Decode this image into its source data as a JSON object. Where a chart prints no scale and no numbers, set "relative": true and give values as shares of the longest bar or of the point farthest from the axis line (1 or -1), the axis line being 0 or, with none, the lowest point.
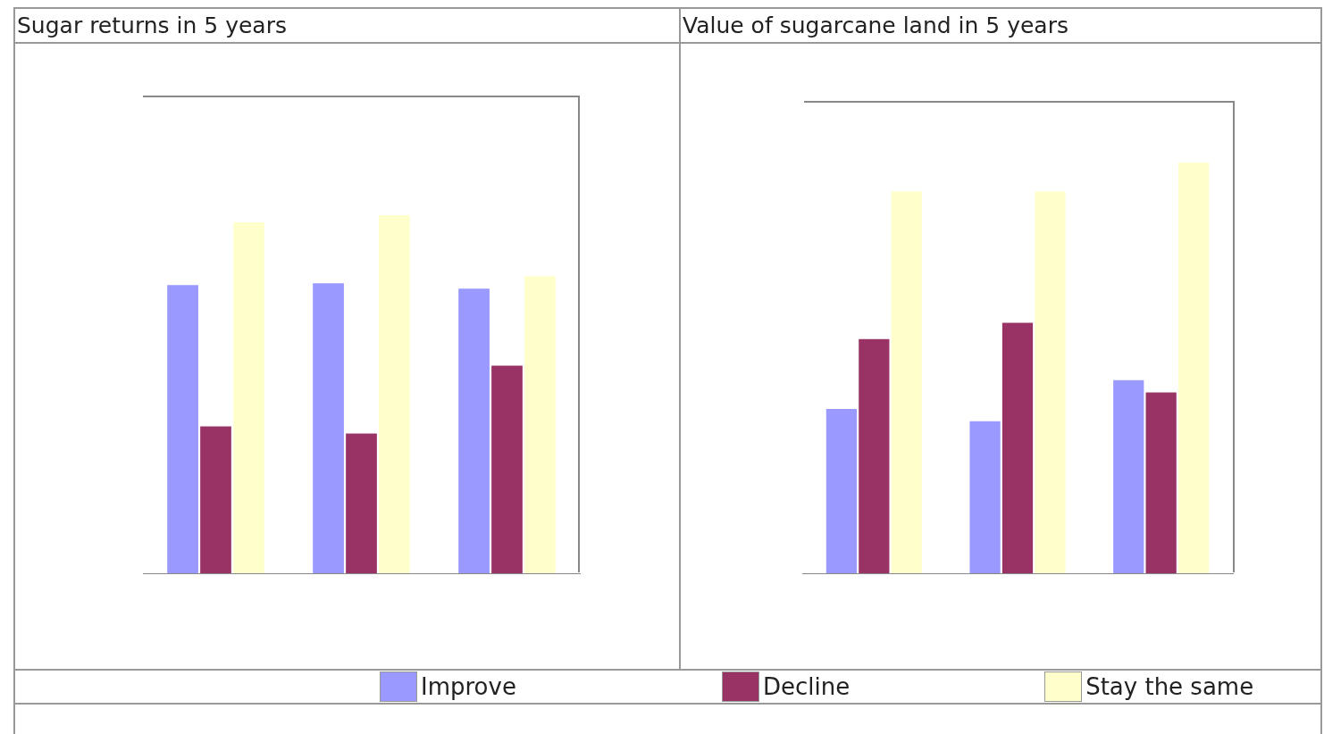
{
  "chart_data": [
    {
      "type": "bar",
      "title": "Sugar returns in 5 years",
      "categories": [
        null,
        null,
        null
      ],
      "relative": true,
      "legend": "bottom",
      "series": [
        {
          "name": "Improve",
          "color": "#9999ff",
          "values": [
            0.805,
            0.81,
            0.795
          ]
        },
        {
          "name": "Decline",
          "color": "#993366",
          "values": [
            0.41,
            0.39,
            0.58
          ]
        },
        {
          "name": "Stay the same",
          "color": "#ffffcc",
          "values": [
            0.98,
            1,
            0.83
          ]
        }
      ]
    },
    {
      "type": "bar",
      "title": "Value of sugarcane land in 5 years",
      "categories": [
        null,
        null,
        null
      ],
      "relative": true,
      "legend": "bottom",
      "series": [
        {
          "name": "Improve",
          "color": "#9999ff",
          "values": [
            0.4,
            0.37,
            0.47
          ]
        },
        {
          "name": "Decline",
          "color": "#993366",
          "values": [
            0.57,
            0.61,
            0.44
          ]
        },
        {
          "name": "Stay the same",
          "color": "#ffffcc",
          "values": [
            0.93,
            0.93,
            1
          ]
        }
      ]
    }
  ]
}
